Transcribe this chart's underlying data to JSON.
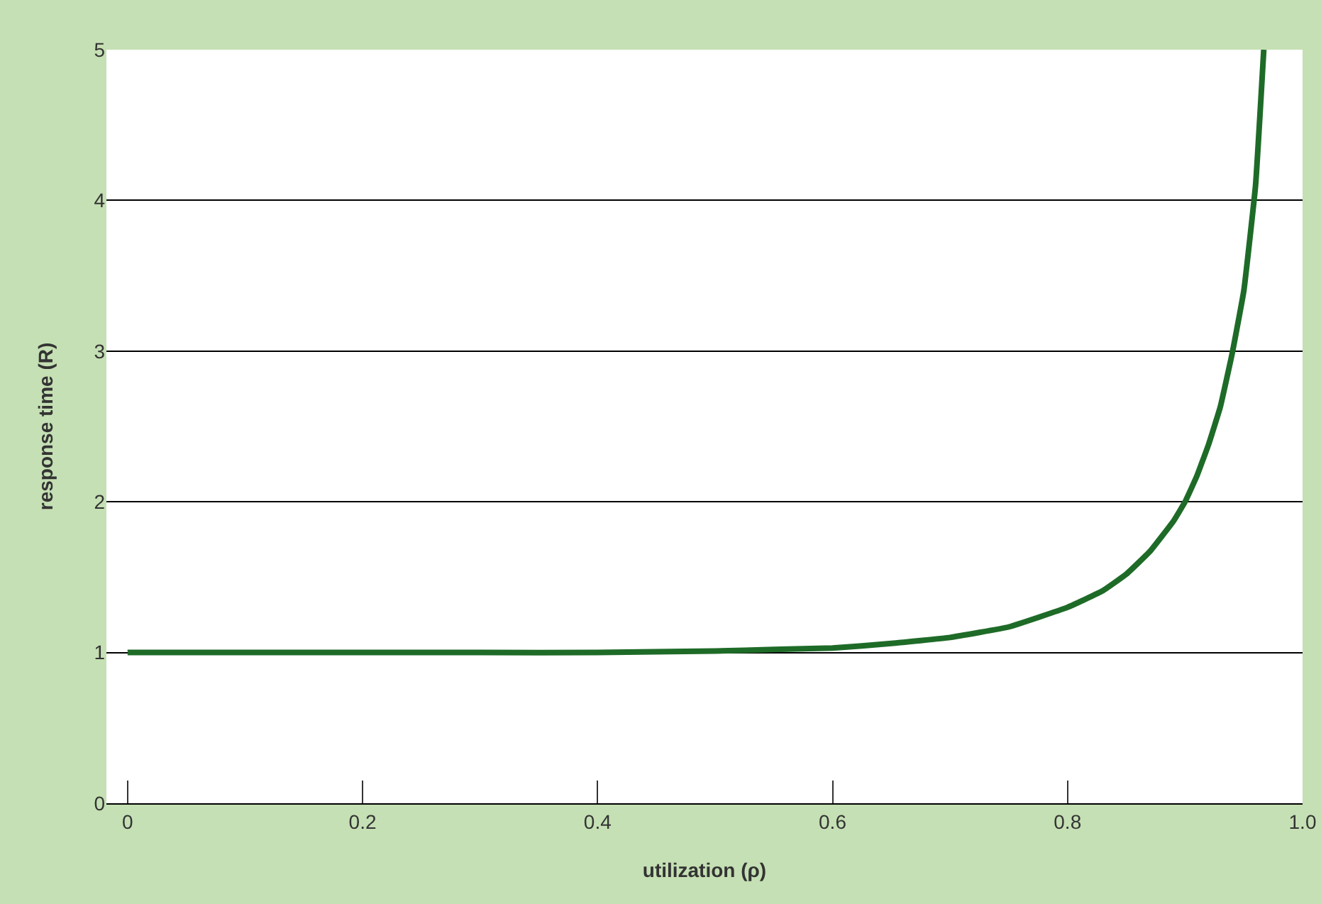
{
  "chart_data": {
    "type": "line",
    "xlabel": "utilization (ρ)",
    "ylabel": "response time (R)",
    "x": [
      0,
      0.1,
      0.2,
      0.3,
      0.4,
      0.5,
      0.55,
      0.6,
      0.65,
      0.7,
      0.75,
      0.8,
      0.83,
      0.85,
      0.87,
      0.89,
      0.9,
      0.91,
      0.92,
      0.93,
      0.94,
      0.95,
      0.96,
      0.967
    ],
    "series": [
      {
        "color": "#1e6b28",
        "values": [
          1,
          1,
          1,
          1,
          1,
          1.01,
          1.02,
          1.03,
          1.06,
          1.1,
          1.17,
          1.3,
          1.41,
          1.52,
          1.67,
          1.87,
          2.0,
          2.17,
          2.38,
          2.63,
          2.98,
          3.4,
          4.1,
          5.0
        ]
      }
    ],
    "xlim": [
      -0.018,
      1.0
    ],
    "xticks": [
      0,
      0.2,
      0.4,
      0.6,
      0.8,
      {
        "value": 1,
        "label": "1.0"
      }
    ],
    "ylim": [
      0,
      5
    ],
    "yticks": [
      0,
      1,
      2,
      3,
      4,
      5
    ],
    "grid": "y",
    "marker": "none",
    "line_style": "solid"
  }
}
